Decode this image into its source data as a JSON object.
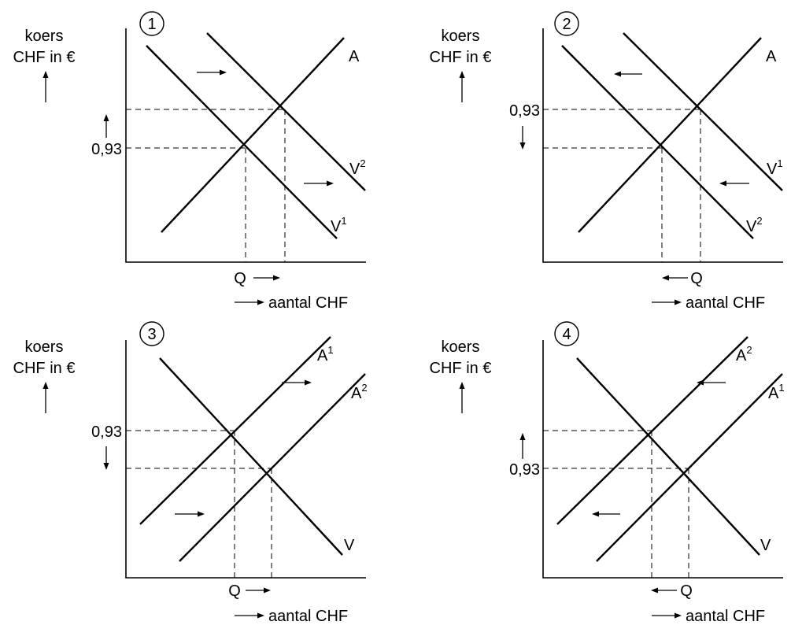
{
  "panels": [
    {
      "number": "1",
      "ylabel_line1": "koers",
      "ylabel_line2": "CHF in €",
      "xlabel": "aantal CHF",
      "price_label": "0,93",
      "quantity_label": "Q",
      "curves": [
        {
          "base": "A",
          "sup": ""
        },
        {
          "base": "V",
          "sup": "1"
        },
        {
          "base": "V",
          "sup": "2"
        }
      ],
      "shift": "demand right"
    },
    {
      "number": "2",
      "ylabel_line1": "koers",
      "ylabel_line2": "CHF in €",
      "xlabel": "aantal CHF",
      "price_label": "0,93",
      "quantity_label": "Q",
      "curves": [
        {
          "base": "A",
          "sup": ""
        },
        {
          "base": "V",
          "sup": "1"
        },
        {
          "base": "V",
          "sup": "2"
        }
      ],
      "shift": "demand left"
    },
    {
      "number": "3",
      "ylabel_line1": "koers",
      "ylabel_line2": "CHF in €",
      "xlabel": "aantal CHF",
      "price_label": "0,93",
      "quantity_label": "Q",
      "curves": [
        {
          "base": "A",
          "sup": "1"
        },
        {
          "base": "A",
          "sup": "2"
        },
        {
          "base": "V",
          "sup": ""
        }
      ],
      "shift": "supply right"
    },
    {
      "number": "4",
      "ylabel_line1": "koers",
      "ylabel_line2": "CHF in €",
      "xlabel": "aantal CHF",
      "price_label": "0,93",
      "quantity_label": "Q",
      "curves": [
        {
          "base": "A",
          "sup": "2"
        },
        {
          "base": "A",
          "sup": "1"
        },
        {
          "base": "V",
          "sup": ""
        }
      ],
      "shift": "supply left"
    }
  ]
}
